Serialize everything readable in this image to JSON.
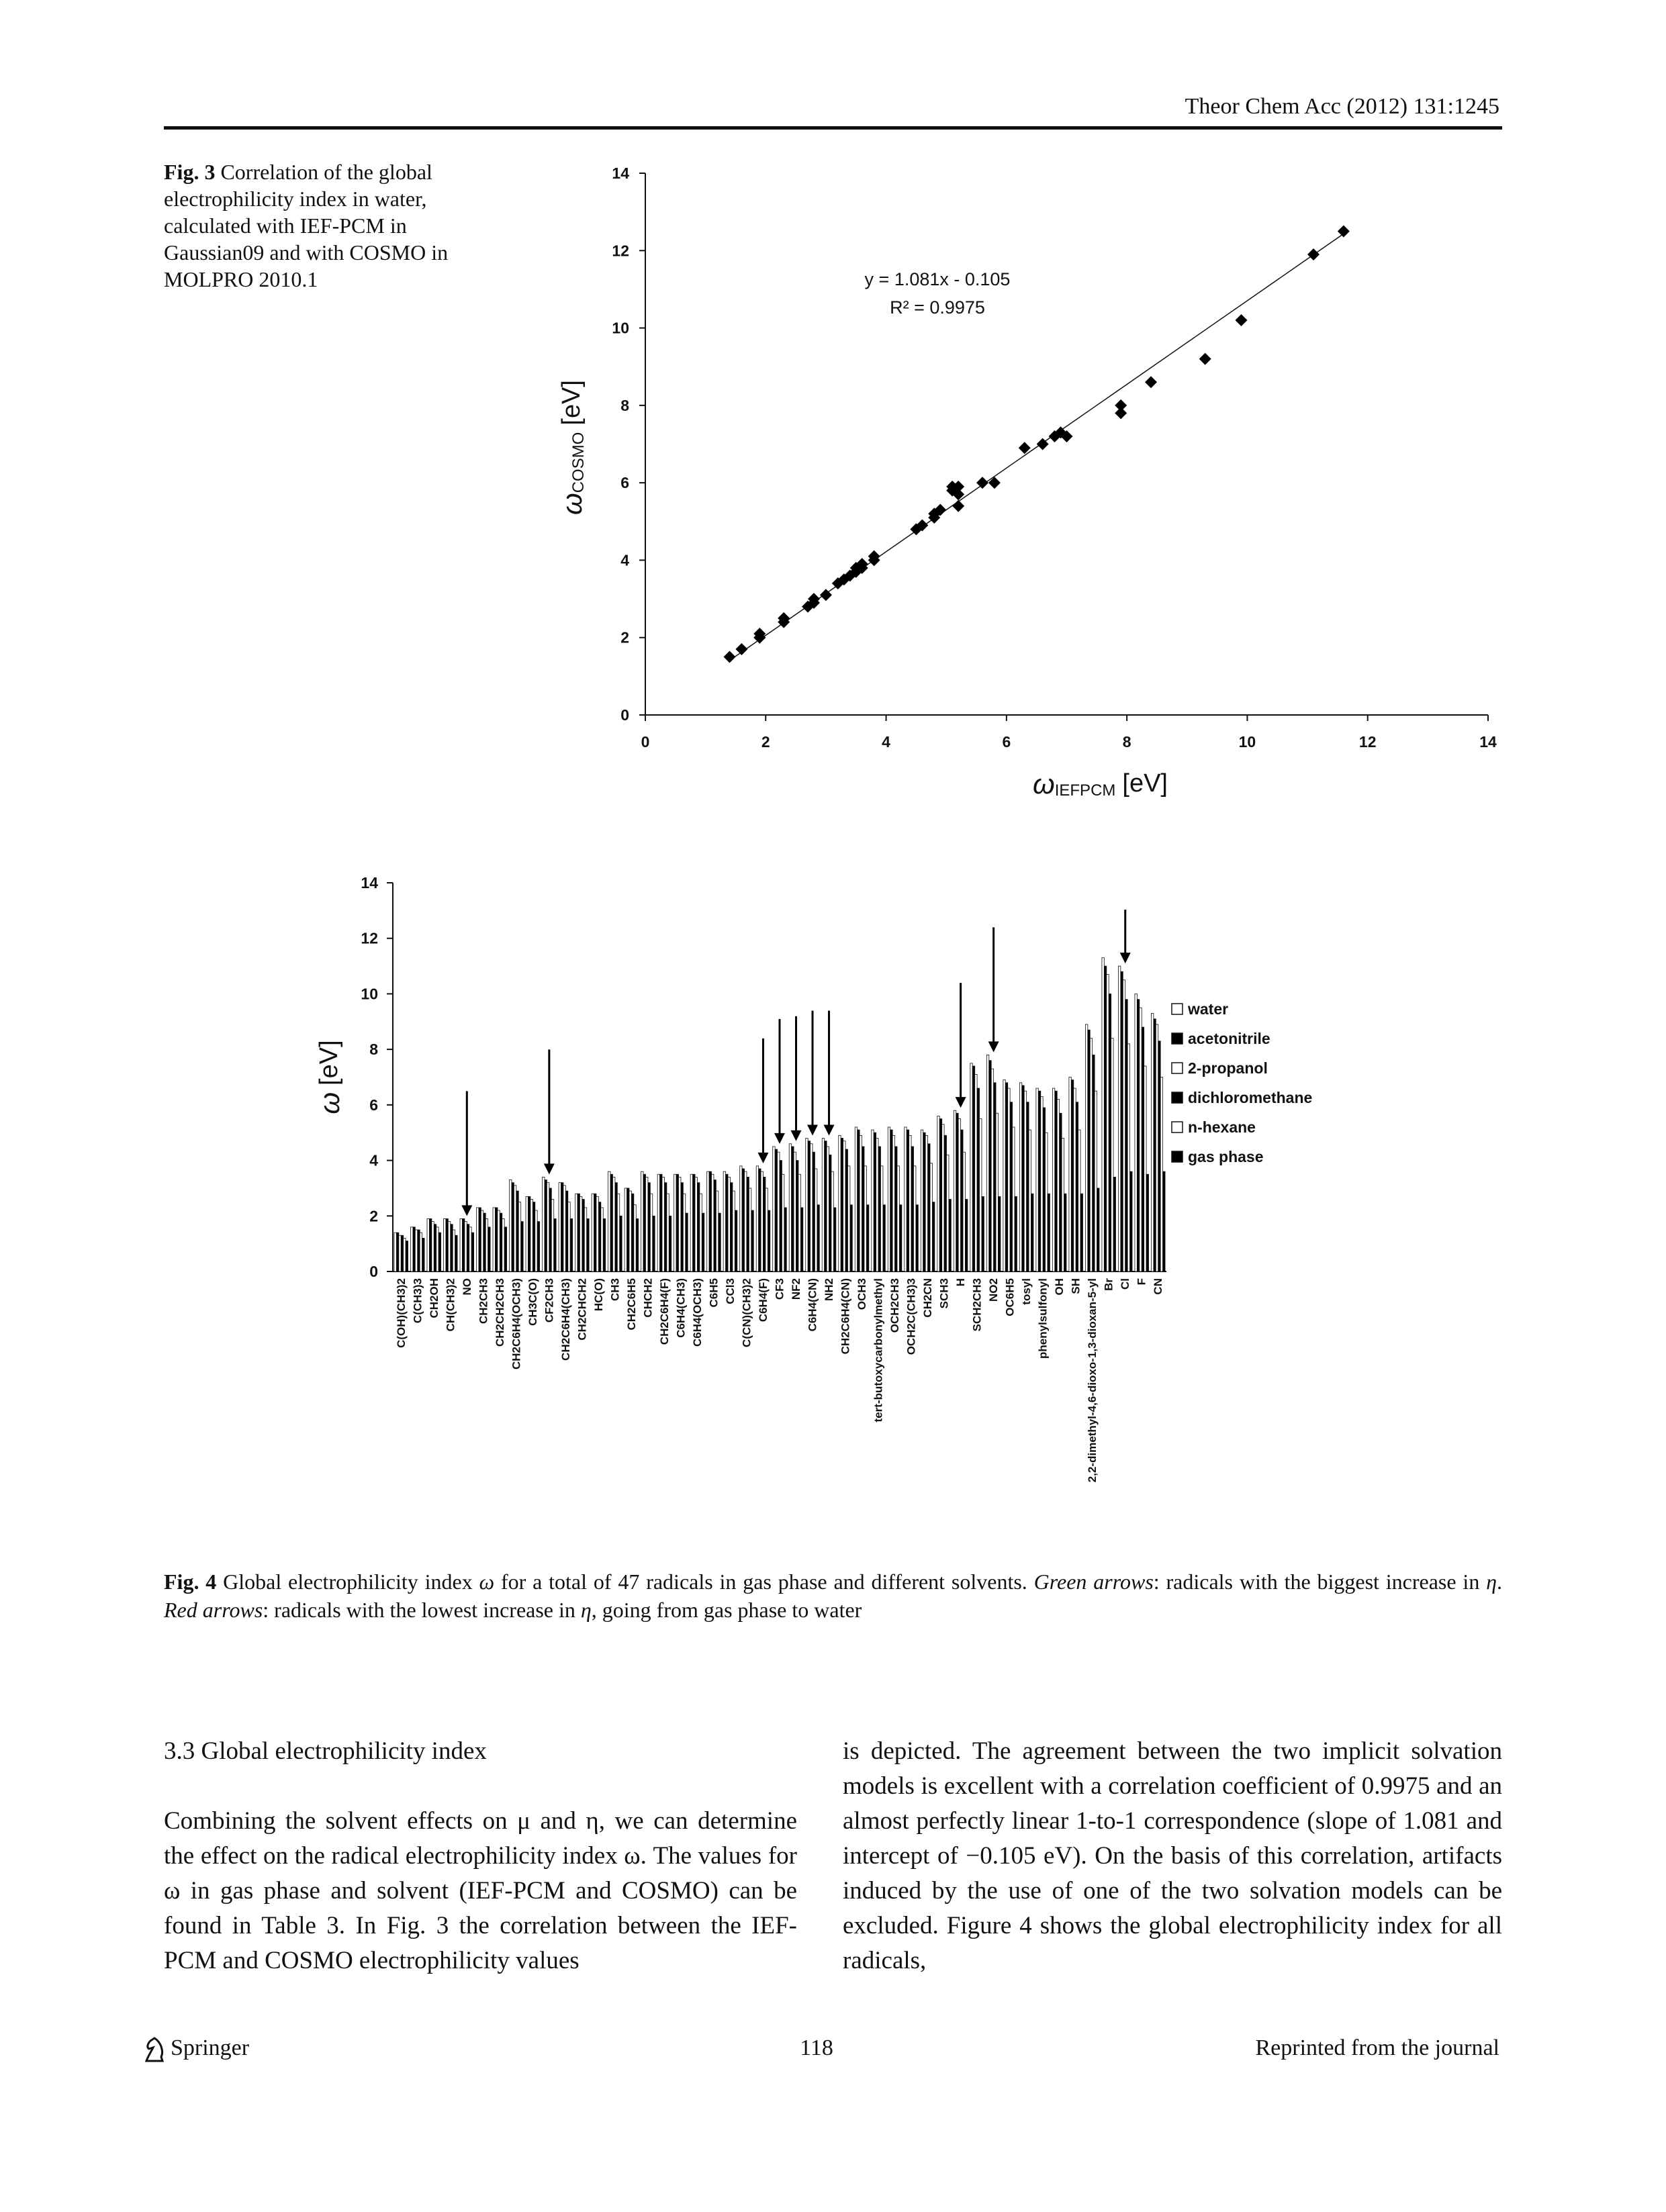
{
  "header": {
    "journal": "Theor Chem Acc (2012) 131:1245"
  },
  "figure3": {
    "label": "Fig. 3",
    "caption": "Correlation of the global electrophilicity index in water, calculated with IEF-PCM in Gaussian09 and with COSMO in MOLPRO 2010.1"
  },
  "chart_data": [
    {
      "type": "scatter",
      "x_label": {
        "symbol": "ω",
        "subscript": "IEFPCM",
        "unit": "[eV]"
      },
      "y_label": {
        "symbol": "ω",
        "subscript": "COSMO",
        "unit": "[eV]"
      },
      "annotations": [
        "y = 1.081x - 0.105",
        "R² = 0.9975"
      ],
      "trendline": {
        "slope": 1.081,
        "intercept": -0.105
      },
      "color": "#000000",
      "marker": "diamond",
      "xlim": [
        0,
        14
      ],
      "xticks": [
        0,
        2,
        4,
        6,
        8,
        10,
        12,
        14
      ],
      "ylim": [
        0,
        14
      ],
      "yticks": [
        0,
        2,
        4,
        6,
        8,
        10,
        12,
        14
      ],
      "x": [
        1.4,
        1.6,
        1.9,
        1.9,
        1.9,
        2.3,
        2.3,
        2.7,
        2.8,
        2.8,
        3.0,
        3.2,
        3.3,
        3.4,
        3.5,
        3.5,
        3.5,
        3.6,
        3.6,
        3.6,
        3.6,
        3.8,
        3.8,
        4.5,
        4.6,
        4.8,
        4.8,
        4.9,
        5.1,
        5.1,
        5.2,
        5.2,
        5.2,
        5.6,
        5.8,
        6.3,
        6.6,
        6.8,
        6.9,
        7.0,
        7.9,
        7.9,
        8.4,
        9.3,
        9.9,
        11.1,
        11.6
      ],
      "y": [
        1.5,
        1.7,
        2.0,
        2.1,
        2.0,
        2.4,
        2.5,
        2.8,
        2.9,
        3.0,
        3.1,
        3.4,
        3.5,
        3.6,
        3.7,
        3.7,
        3.8,
        3.8,
        3.9,
        3.9,
        3.9,
        4.0,
        4.1,
        4.8,
        4.9,
        5.1,
        5.2,
        5.3,
        5.8,
        5.9,
        5.7,
        5.4,
        5.9,
        6.0,
        6.0,
        6.9,
        7.0,
        7.2,
        7.3,
        7.2,
        7.8,
        8.0,
        8.6,
        9.2,
        10.2,
        11.9,
        12.5
      ]
    },
    {
      "type": "bar",
      "y_label": {
        "symbol": "ω",
        "unit": "[eV]"
      },
      "ylim": [
        0,
        14
      ],
      "yticks": [
        0,
        2,
        4,
        6,
        8,
        10,
        12,
        14
      ],
      "legend": "right",
      "categories": [
        "C(OH)(CH3)2",
        "C(CH3)3",
        "CH2OH",
        "CH(CH3)2",
        "NO",
        "CH2CH3",
        "CH2CH2CH3",
        "CH2C6H4(OCH3)",
        "CH3C(O)",
        "CF2CH3",
        "CH2C6H4(CH3)",
        "CH2CHCH2",
        "HC(O)",
        "CH3",
        "CH2C6H5",
        "CHCH2",
        "CH2C6H4(F)",
        "C6H4(CH3)",
        "C6H4(OCH3)",
        "C6H5",
        "CCl3",
        "C(CN)(CH3)2",
        "C6H4(F)",
        "CF3",
        "NF2",
        "C6H4(CN)",
        "NH2",
        "CH2C6H4(CN)",
        "OCH3",
        "tert-butoxycarbonylmethyl",
        "OCH2CH3",
        "OCH2C(CH3)3",
        "CH2CN",
        "SCH3",
        "H",
        "SCH2CH3",
        "NO2",
        "OC6H5",
        "tosyl",
        "phenylsulfonyl",
        "OH",
        "SH",
        "2,2-dimethyl-4,6-dioxo-1,3-dioxan-5-yl",
        "Br",
        "Cl",
        "F",
        "CN"
      ],
      "arrows": [
        "NO",
        "CF2CH3",
        "C6H4(F)",
        "CF3",
        "NF2",
        "C6H4(CN)",
        "NH2",
        "H",
        "NO2",
        "Cl"
      ],
      "arrow_color": "#000000",
      "series": [
        {
          "name": "water",
          "color": "#ffffff",
          "values": [
            1.4,
            1.6,
            1.9,
            1.9,
            1.9,
            2.3,
            2.3,
            3.3,
            2.7,
            3.4,
            3.2,
            2.8,
            2.8,
            3.6,
            3.0,
            3.6,
            3.5,
            3.5,
            3.5,
            3.6,
            3.6,
            3.8,
            3.8,
            4.5,
            4.6,
            4.8,
            4.8,
            4.9,
            5.2,
            5.1,
            5.2,
            5.2,
            5.1,
            5.6,
            5.8,
            7.5,
            7.8,
            6.9,
            6.8,
            6.6,
            6.6,
            7.0,
            8.9,
            11.3,
            11.0,
            10.0,
            9.3
          ]
        },
        {
          "name": "acetonitrile",
          "color": "#000000",
          "values": [
            1.4,
            1.6,
            1.9,
            1.9,
            1.9,
            2.3,
            2.3,
            3.2,
            2.7,
            3.3,
            3.2,
            2.8,
            2.8,
            3.5,
            3.0,
            3.5,
            3.5,
            3.5,
            3.5,
            3.6,
            3.5,
            3.7,
            3.7,
            4.4,
            4.5,
            4.7,
            4.7,
            4.8,
            5.1,
            5.0,
            5.1,
            5.1,
            5.0,
            5.5,
            5.7,
            7.4,
            7.6,
            6.8,
            6.7,
            6.5,
            6.5,
            6.9,
            8.7,
            11.0,
            10.8,
            9.8,
            9.1
          ]
        },
        {
          "name": "2-propanol",
          "color": "#ffffff",
          "values": [
            1.3,
            1.5,
            1.8,
            1.8,
            1.8,
            2.2,
            2.2,
            3.1,
            2.6,
            3.2,
            3.1,
            2.7,
            2.7,
            3.4,
            2.9,
            3.4,
            3.4,
            3.4,
            3.4,
            3.5,
            3.4,
            3.6,
            3.6,
            4.3,
            4.3,
            4.6,
            4.5,
            4.7,
            4.9,
            4.8,
            4.9,
            4.9,
            4.9,
            5.3,
            5.5,
            7.1,
            7.3,
            6.6,
            6.5,
            6.3,
            6.2,
            6.6,
            8.4,
            10.7,
            10.5,
            9.5,
            8.9
          ]
        },
        {
          "name": "dichloromethane",
          "color": "#000000",
          "values": [
            1.3,
            1.5,
            1.7,
            1.7,
            1.7,
            2.1,
            2.1,
            2.9,
            2.5,
            3.0,
            2.9,
            2.6,
            2.5,
            3.2,
            2.8,
            3.2,
            3.2,
            3.2,
            3.2,
            3.3,
            3.2,
            3.4,
            3.4,
            4.0,
            4.0,
            4.3,
            4.2,
            4.4,
            4.5,
            4.5,
            4.5,
            4.5,
            4.6,
            4.9,
            5.1,
            6.6,
            6.8,
            6.1,
            6.1,
            5.9,
            5.7,
            6.1,
            7.8,
            10.0,
            9.8,
            8.8,
            8.3
          ]
        },
        {
          "name": "n-hexane",
          "color": "#ffffff",
          "values": [
            1.2,
            1.4,
            1.6,
            1.5,
            1.6,
            1.9,
            1.9,
            2.5,
            2.2,
            2.6,
            2.5,
            2.3,
            2.3,
            2.8,
            2.4,
            2.8,
            2.8,
            2.8,
            2.8,
            2.9,
            2.9,
            3.0,
            3.0,
            3.5,
            3.5,
            3.7,
            3.6,
            3.8,
            3.8,
            3.8,
            3.8,
            3.8,
            3.9,
            4.2,
            4.3,
            5.5,
            5.7,
            5.2,
            5.1,
            5.0,
            4.8,
            5.1,
            6.5,
            8.4,
            8.2,
            7.4,
            7.0
          ]
        },
        {
          "name": "gas phase",
          "color": "#000000",
          "values": [
            1.1,
            1.2,
            1.4,
            1.3,
            1.4,
            1.6,
            1.6,
            1.8,
            1.8,
            1.9,
            1.9,
            1.9,
            1.9,
            2.0,
            1.9,
            2.0,
            2.0,
            2.1,
            2.1,
            2.1,
            2.2,
            2.2,
            2.2,
            2.3,
            2.3,
            2.4,
            2.3,
            2.4,
            2.4,
            2.4,
            2.4,
            2.4,
            2.5,
            2.6,
            2.6,
            2.7,
            2.7,
            2.7,
            2.8,
            2.8,
            2.8,
            2.8,
            3.0,
            3.4,
            3.6,
            3.5,
            3.6
          ]
        }
      ]
    }
  ],
  "figure4": {
    "label": "Fig. 4",
    "caption": [
      "Global electrophilicity index ",
      "ω",
      " for a total of 47 radicals in gas phase and different solvents. ",
      "Green arrows",
      ": radicals with the biggest increase in ",
      "η",
      ". ",
      "Red arrows",
      ": radicals with the lowest increase in ",
      "η",
      ", going from gas phase to water"
    ]
  },
  "section": {
    "heading": "3.3 Global electrophilicity index",
    "paragraphs": [
      "Combining the solvent effects on μ and η, we can determine the effect on the radical electrophilicity index ω. The values for ω in gas phase and solvent (IEF-PCM and COSMO) can be found in Table 3. In Fig. 3 the correlation between the IEF-PCM and COSMO electrophilicity values",
      "is depicted. The agreement between the two implicit solvation models is excellent with a correlation coefficient of 0.9975 and an almost perfectly linear 1-to-1 correspondence (slope of 1.081 and intercept of −0.105 eV). On the basis of this correlation, artifacts induced by the use of one of the two solvation models can be excluded. Figure 4 shows the global electrophilicity index for all radicals,"
    ]
  },
  "footer": {
    "publisher": "Springer",
    "page": "118",
    "note": "Reprinted from the journal"
  }
}
